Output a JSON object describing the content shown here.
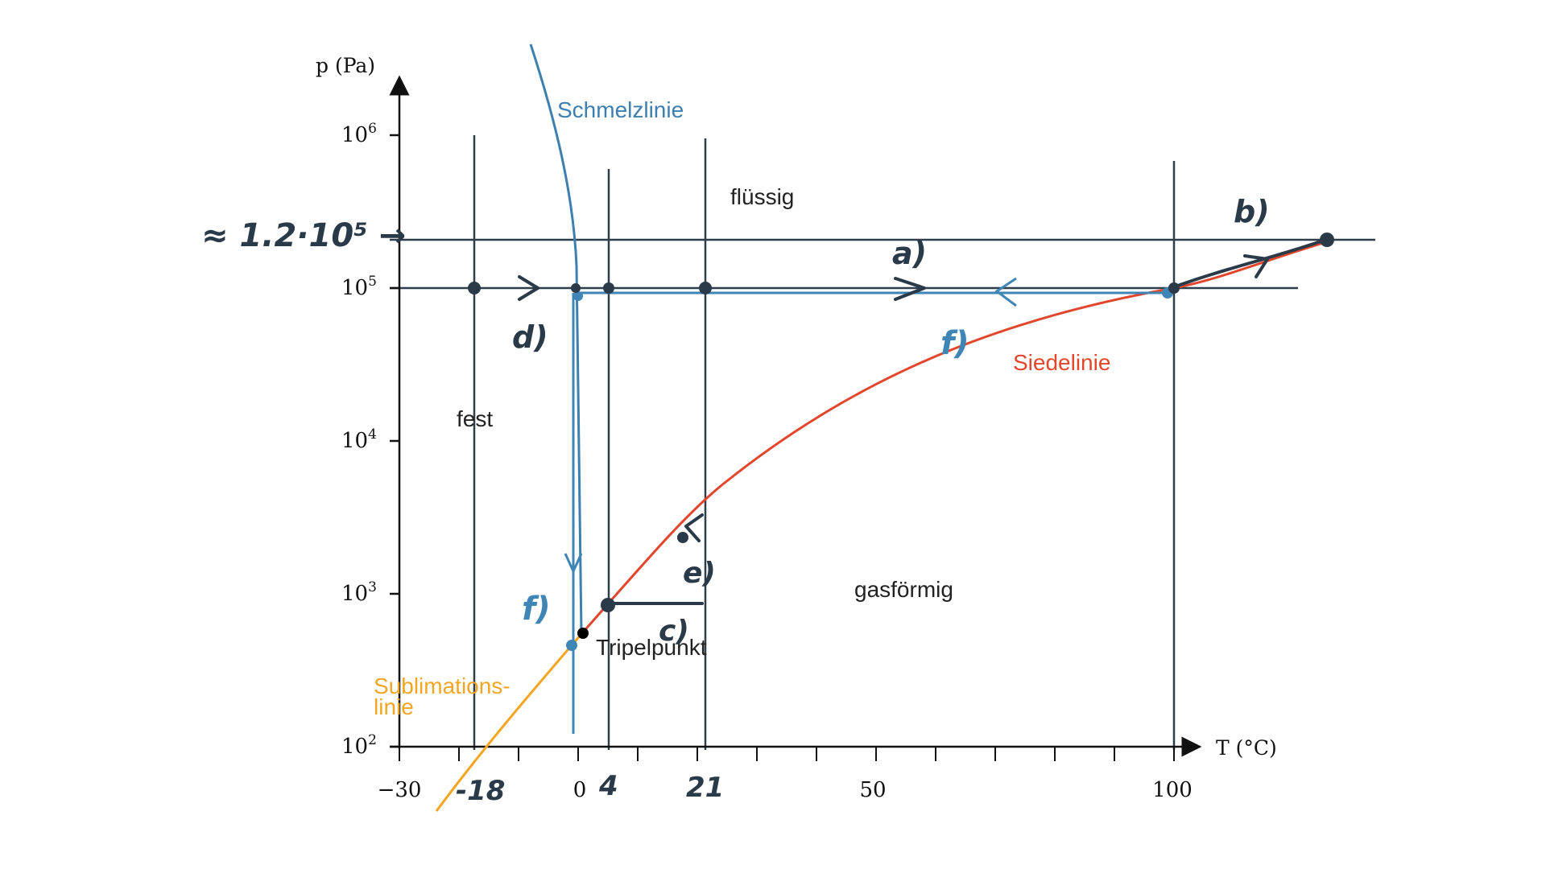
{
  "colors": {
    "axis": "#111111",
    "grid_dark": "#2e3e4b",
    "melting": "#3d7fae",
    "boiling": "#e0472c",
    "sublimation": "#f2a624",
    "annotation_dark": "#2a3a48",
    "annotation_blue": "#3f86b6",
    "triple_point": "#000000"
  },
  "axes": {
    "y_label": "p (Pa)",
    "x_label": "T (°C)",
    "y_ticks": [
      {
        "base": "10",
        "exp": "2"
      },
      {
        "base": "10",
        "exp": "3"
      },
      {
        "base": "10",
        "exp": "4"
      },
      {
        "base": "10",
        "exp": "5"
      },
      {
        "base": "10",
        "exp": "6"
      }
    ],
    "x_ticks": [
      "−30",
      "0",
      "50",
      "100"
    ]
  },
  "regions": {
    "solid": "fest",
    "liquid": "flüssig",
    "gas": "gasförmig"
  },
  "curves": {
    "melting": "Schmelzlinie",
    "boiling": "Siedelinie",
    "sublimation_1": "Sublimations-",
    "sublimation_2": "linie",
    "triple_point": "Tripelpunkt"
  },
  "handwriting": {
    "pressure_note": "≈ 1.2·10⁵ →",
    "x_marks": [
      "-18",
      "4",
      "21"
    ],
    "labels": {
      "a": "a)",
      "b": "b)",
      "c": "c)",
      "d": "d)",
      "e": "e)",
      "f_top": "f)",
      "f_bottom": "f)"
    }
  }
}
